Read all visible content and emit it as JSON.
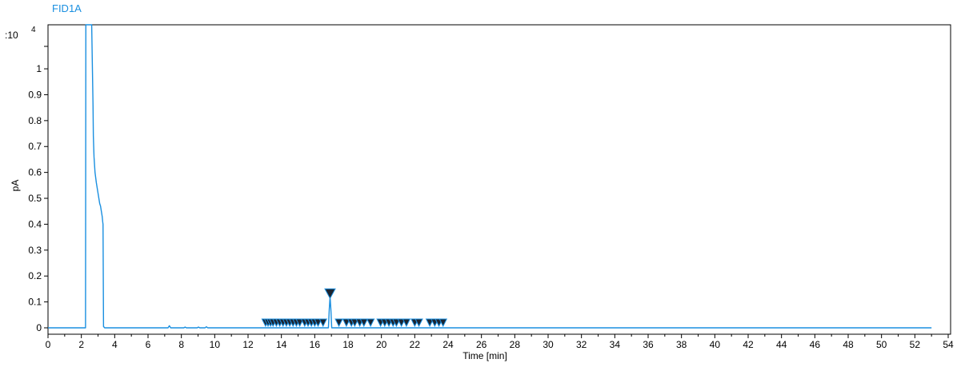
{
  "chart_data": {
    "type": "line",
    "title": "FID1A",
    "xlabel": "Time [min]",
    "ylabel": "pA",
    "y_multiplier": ":10",
    "y_exponent": "4",
    "xlim": [
      0,
      54
    ],
    "ylim": [
      0,
      1.17
    ],
    "x_ticks": [
      0,
      2,
      4,
      6,
      8,
      10,
      12,
      14,
      16,
      18,
      20,
      22,
      24,
      26,
      28,
      30,
      32,
      34,
      36,
      38,
      40,
      42,
      44,
      46,
      48,
      50,
      52,
      54
    ],
    "y_ticks": [
      0,
      0.1,
      0.2,
      0.3,
      0.4,
      0.5,
      0.6,
      0.7,
      0.8,
      0.9,
      1
    ],
    "y_tick_labels": [
      "0",
      "0.1",
      "0.2",
      "0.3",
      "0.4",
      "0.5",
      "0.6",
      "0.7",
      "0.8",
      "0.9",
      "1"
    ],
    "grid": false,
    "series": [
      {
        "color": "#1a8fe0",
        "x": [
          0,
          2.25,
          2.27,
          2.3,
          2.55,
          2.62,
          2.7,
          2.72,
          2.74,
          2.76,
          2.78,
          2.82,
          2.9,
          3.0,
          3.05,
          3.1,
          3.15,
          3.2,
          3.25,
          3.28,
          3.3,
          3.33,
          3.4,
          3.6,
          7.2,
          7.28,
          7.36,
          8.15,
          8.22,
          8.3,
          8.95,
          9.02,
          9.1,
          9.42,
          9.5,
          9.58,
          16.82,
          16.87,
          16.92,
          16.97,
          17.02,
          53.0
        ],
        "values": [
          0,
          0,
          1.17,
          1.17,
          1.17,
          1.17,
          0.86,
          0.74,
          0.7,
          0.66,
          0.64,
          0.6,
          0.56,
          0.52,
          0.5,
          0.48,
          0.47,
          0.45,
          0.43,
          0.41,
          0.4,
          0.005,
          0,
          0,
          0,
          0.008,
          0,
          0,
          0.003,
          0,
          0,
          0.003,
          0,
          0,
          0.004,
          0,
          0,
          0.07,
          0.12,
          0.07,
          0,
          0
        ]
      }
    ],
    "peak_markers_x": [
      13.05,
      13.2,
      13.35,
      13.5,
      13.7,
      13.9,
      14.1,
      14.3,
      14.5,
      14.7,
      14.9,
      15.1,
      15.4,
      15.6,
      15.8,
      16.0,
      16.2,
      16.5,
      17.45,
      17.9,
      18.2,
      18.4,
      18.7,
      18.95,
      19.35,
      19.95,
      20.2,
      20.45,
      20.7,
      20.9,
      21.2,
      21.5,
      22.0,
      22.25,
      22.9,
      23.2,
      23.45,
      23.7
    ],
    "peak_markers_y": 0.028,
    "main_peak_marker": {
      "x": 16.92,
      "y": 0.132
    }
  }
}
